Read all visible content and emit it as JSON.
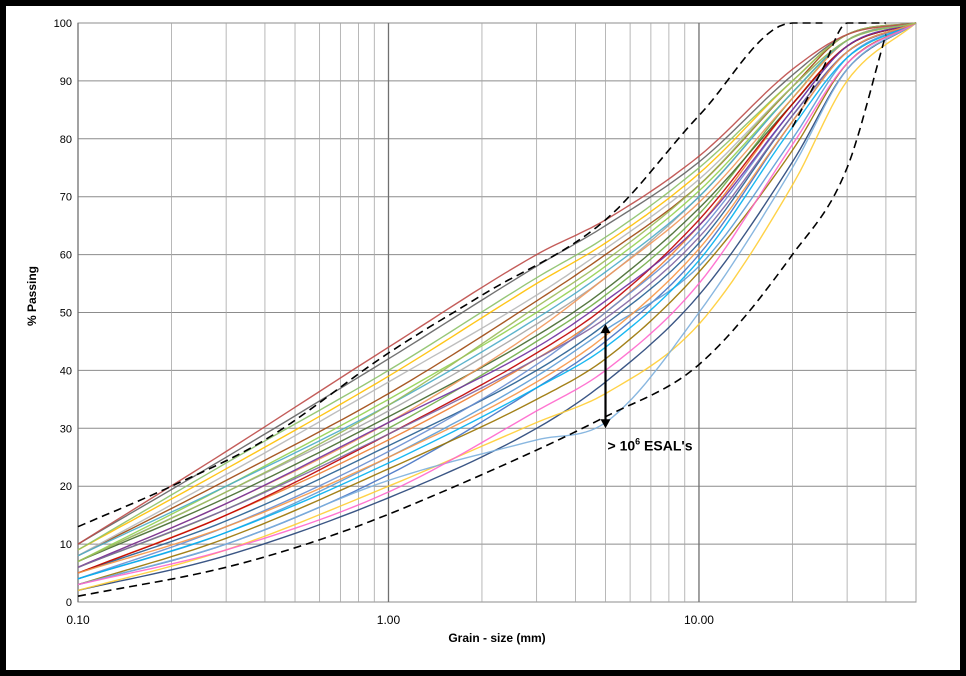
{
  "chart_data": {
    "type": "line",
    "title": "",
    "xlabel": "Grain - size (mm)",
    "ylabel": "% Passing",
    "x_scale": "log",
    "xlim": [
      0.1,
      50
    ],
    "ylim": [
      0,
      100
    ],
    "x_tick_labels": [
      "0.10",
      "1.00",
      "10.00"
    ],
    "x_tick_values": [
      0.1,
      1,
      10
    ],
    "y_ticks": [
      0,
      10,
      20,
      30,
      40,
      50,
      60,
      70,
      80,
      90,
      100
    ],
    "grid": true,
    "legend": "none",
    "annotation": {
      "text_main": "> 10",
      "text_sup": "6",
      "text_tail": " ESAL's",
      "arrow_x": 5,
      "arrow_y_top": 48,
      "arrow_y_bottom": 30
    },
    "envelopes": [
      {
        "style": "dashed",
        "x": [
          0.1,
          0.2,
          0.4,
          1,
          2,
          5,
          10,
          20,
          25
        ],
        "y": [
          13,
          20,
          28,
          43,
          53,
          66,
          84,
          100,
          100
        ]
      },
      {
        "style": "dashed",
        "x": [
          0.1,
          0.3,
          0.7,
          2,
          5,
          10,
          20,
          30,
          40
        ],
        "y": [
          1,
          6,
          12,
          22,
          32,
          41,
          60,
          75,
          98
        ]
      },
      {
        "style": "dashed",
        "x": [
          20,
          25,
          30,
          40
        ],
        "y": [
          82,
          92,
          100,
          100
        ]
      }
    ],
    "series_colors": [
      "#4472c4",
      "#ed7d31",
      "#a5a5a5",
      "#ffc000",
      "#5b9bd5",
      "#70ad47",
      "#264478",
      "#9e480e",
      "#636363",
      "#997300",
      "#255e91",
      "#43682b",
      "#698ed0",
      "#f1975a",
      "#b7b7b7",
      "#ffcd33",
      "#7cafdd",
      "#8cc168",
      "#c00000",
      "#7030a0",
      "#00b0f0",
      "#92d050",
      "#ff66cc",
      "#be4b48",
      "#8064a2",
      "#4bacc6",
      "#f79646",
      "#9bbb59"
    ],
    "series": [
      {
        "x": [
          0.1,
          0.3,
          1,
          3,
          5,
          10,
          20,
          30,
          50
        ],
        "y": [
          3,
          10,
          22,
          37,
          45,
          60,
          83,
          95,
          100
        ]
      },
      {
        "x": [
          0.1,
          0.3,
          1,
          3,
          5,
          10,
          20,
          30,
          50
        ],
        "y": [
          5,
          15,
          28,
          42,
          50,
          65,
          86,
          96,
          100
        ]
      },
      {
        "x": [
          0.1,
          0.3,
          1,
          3,
          5,
          10,
          20,
          30,
          50
        ],
        "y": [
          7,
          19,
          33,
          48,
          56,
          70,
          88,
          97,
          100
        ]
      },
      {
        "x": [
          0.1,
          0.3,
          1,
          3,
          5,
          10,
          20,
          30,
          50
        ],
        "y": [
          9,
          23,
          39,
          55,
          62,
          74,
          90,
          98,
          100
        ]
      },
      {
        "x": [
          0.1,
          0.3,
          1,
          3,
          5,
          10,
          20,
          30,
          50
        ],
        "y": [
          4,
          12,
          25,
          39,
          47,
          58,
          80,
          94,
          100
        ]
      },
      {
        "x": [
          0.1,
          0.3,
          1,
          3,
          5,
          10,
          20,
          30,
          50
        ],
        "y": [
          6,
          16,
          30,
          45,
          53,
          67,
          87,
          97,
          100
        ]
      },
      {
        "x": [
          0.1,
          0.3,
          1,
          3,
          5,
          10,
          20,
          30,
          50
        ],
        "y": [
          2,
          8,
          18,
          30,
          38,
          53,
          76,
          92,
          100
        ]
      },
      {
        "x": [
          0.1,
          0.3,
          1,
          3,
          5,
          10,
          20,
          30,
          50
        ],
        "y": [
          8,
          21,
          36,
          52,
          60,
          72,
          89,
          98,
          100
        ]
      },
      {
        "x": [
          0.1,
          0.3,
          1,
          3,
          5,
          10,
          20,
          30,
          50
        ],
        "y": [
          10,
          25,
          42,
          58,
          65,
          76,
          91,
          98,
          100
        ]
      },
      {
        "x": [
          0.1,
          0.3,
          1,
          3,
          5,
          10,
          20,
          30,
          50
        ],
        "y": [
          3,
          11,
          23,
          35,
          42,
          57,
          78,
          93,
          100
        ]
      },
      {
        "x": [
          0.1,
          0.3,
          1,
          3,
          5,
          10,
          20,
          30,
          50
        ],
        "y": [
          5,
          14,
          27,
          40,
          48,
          62,
          84,
          95,
          100
        ]
      },
      {
        "x": [
          0.1,
          0.3,
          1,
          3,
          5,
          10,
          20,
          30,
          50
        ],
        "y": [
          7,
          18,
          32,
          46,
          54,
          68,
          86,
          96,
          100
        ]
      },
      {
        "x": [
          0.1,
          0.3,
          1,
          3,
          5,
          10,
          20,
          30,
          50
        ],
        "y": [
          4,
          13,
          26,
          41,
          50,
          64,
          85,
          96,
          100
        ]
      },
      {
        "x": [
          0.1,
          0.3,
          1,
          3,
          5,
          10,
          20,
          30,
          50
        ],
        "y": [
          6,
          17,
          31,
          47,
          56,
          69,
          87,
          97,
          100
        ]
      },
      {
        "x": [
          0.1,
          0.3,
          1,
          3,
          5,
          10,
          20,
          30,
          50
        ],
        "y": [
          8,
          22,
          38,
          53,
          61,
          73,
          89,
          97,
          100
        ]
      },
      {
        "x": [
          0.1,
          0.3,
          1,
          3,
          5,
          10,
          20,
          30,
          50
        ],
        "y": [
          2,
          9,
          20,
          31,
          36,
          48,
          72,
          90,
          100
        ]
      },
      {
        "x": [
          0.1,
          0.3,
          1,
          3,
          5,
          10,
          20,
          30,
          50
        ],
        "y": [
          3,
          10,
          21,
          28,
          31,
          50,
          75,
          92,
          100
        ]
      },
      {
        "x": [
          0.1,
          0.3,
          1,
          3,
          5,
          10,
          20,
          30,
          50
        ],
        "y": [
          9,
          24,
          40,
          56,
          63,
          75,
          90,
          98,
          100
        ]
      },
      {
        "x": [
          0.1,
          0.3,
          1,
          3,
          5,
          10,
          20,
          30,
          50
        ],
        "y": [
          5,
          15,
          29,
          43,
          51,
          66,
          86,
          96,
          100
        ]
      },
      {
        "x": [
          0.1,
          0.3,
          1,
          3,
          5,
          10,
          20,
          30,
          50
        ],
        "y": [
          6,
          17,
          31,
          44,
          52,
          65,
          85,
          96,
          100
        ]
      },
      {
        "x": [
          0.1,
          0.3,
          1,
          3,
          5,
          10,
          20,
          30,
          50
        ],
        "y": [
          4,
          12,
          24,
          37,
          44,
          59,
          82,
          94,
          100
        ]
      },
      {
        "x": [
          0.1,
          0.3,
          1,
          3,
          5,
          10,
          20,
          30,
          50
        ],
        "y": [
          7,
          20,
          35,
          50,
          58,
          71,
          88,
          97,
          100
        ]
      },
      {
        "x": [
          0.1,
          0.3,
          1,
          3,
          5,
          10,
          20,
          30,
          50
        ],
        "y": [
          3,
          9,
          19,
          33,
          40,
          55,
          79,
          93,
          100
        ]
      },
      {
        "x": [
          0.1,
          0.3,
          1,
          3,
          5,
          10,
          20,
          30,
          50
        ],
        "y": [
          10,
          26,
          44,
          60,
          66,
          77,
          92,
          98,
          100
        ]
      },
      {
        "x": [
          0.1,
          0.3,
          1,
          3,
          5,
          10,
          20,
          30,
          50
        ],
        "y": [
          6,
          16,
          29,
          42,
          49,
          63,
          84,
          95,
          100
        ]
      },
      {
        "x": [
          0.1,
          0.3,
          1,
          3,
          5,
          10,
          20,
          30,
          50
        ],
        "y": [
          8,
          20,
          34,
          49,
          57,
          70,
          88,
          97,
          100
        ]
      },
      {
        "x": [
          0.1,
          0.3,
          1,
          3,
          5,
          10,
          20,
          30,
          50
        ],
        "y": [
          5,
          13,
          25,
          38,
          46,
          61,
          83,
          95,
          100
        ]
      },
      {
        "x": [
          0.1,
          0.3,
          1,
          3,
          5,
          10,
          20,
          30,
          50
        ],
        "y": [
          7,
          19,
          34,
          51,
          59,
          72,
          89,
          97,
          100
        ]
      }
    ]
  }
}
